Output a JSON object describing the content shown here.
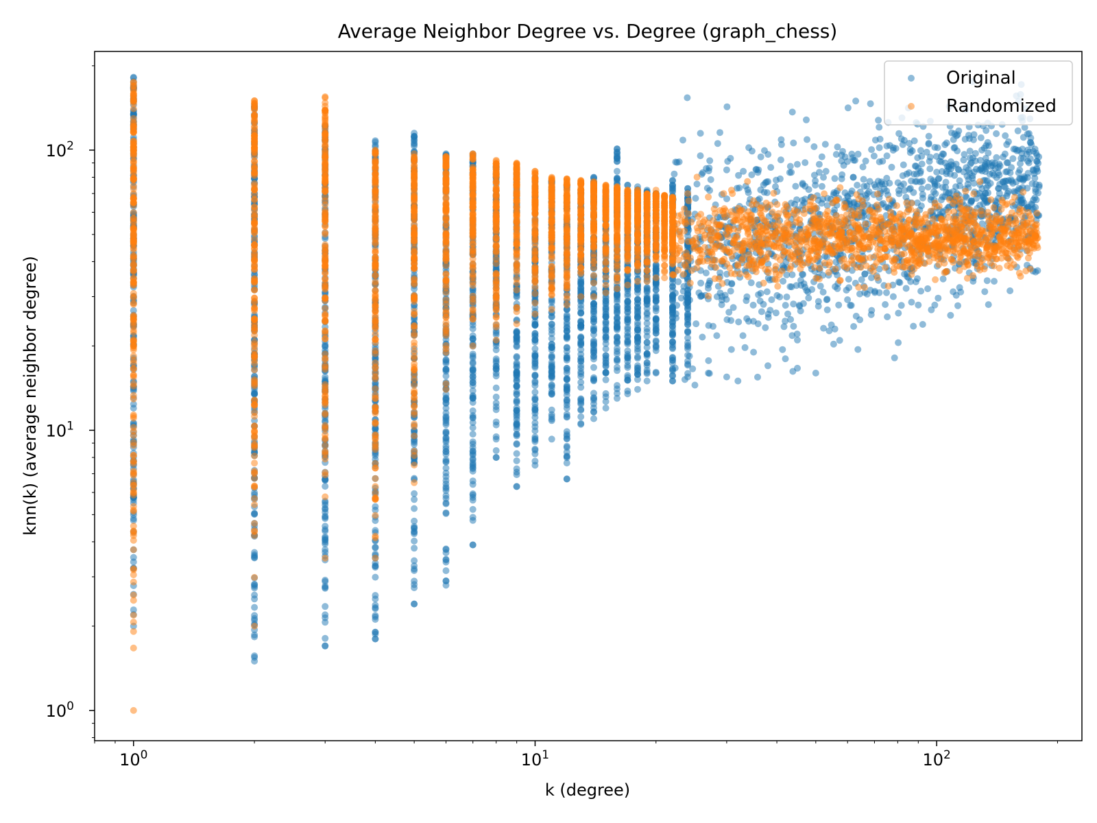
{
  "chart_data": {
    "type": "scatter",
    "title": "Average Neighbor Degree vs. Degree (graph_chess)",
    "xlabel": "k (degree)",
    "ylabel": "knn(k) (average neighbor degree)",
    "xscale": "log",
    "yscale": "log",
    "xlim": [
      0.8,
      230
    ],
    "ylim": [
      0.78,
      225
    ],
    "grid": false,
    "legend_position": "top-right",
    "x_ticks": [
      {
        "value": 1,
        "base": "10",
        "exp": "0"
      },
      {
        "value": 10,
        "base": "10",
        "exp": "1"
      },
      {
        "value": 100,
        "base": "10",
        "exp": "2"
      }
    ],
    "y_ticks": [
      {
        "value": 1,
        "base": "10",
        "exp": "0"
      },
      {
        "value": 10,
        "base": "10",
        "exp": "1"
      },
      {
        "value": 100,
        "base": "10",
        "exp": "2"
      }
    ],
    "series": [
      {
        "name": "Original",
        "color": "#1f77b4",
        "columns": [
          {
            "k": 1,
            "min": 2.0,
            "max": 182
          },
          {
            "k": 2,
            "min": 1.5,
            "max": 145
          },
          {
            "k": 3,
            "min": 1.7,
            "max": 122
          },
          {
            "k": 4,
            "min": 1.8,
            "max": 108
          },
          {
            "k": 5,
            "min": 2.4,
            "max": 115
          },
          {
            "k": 6,
            "min": 2.9,
            "max": 97
          },
          {
            "k": 7,
            "min": 3.9,
            "max": 97
          },
          {
            "k": 8,
            "min": 8.0,
            "max": 88
          },
          {
            "k": 9,
            "min": 6.3,
            "max": 85
          },
          {
            "k": 10,
            "min": 7.5,
            "max": 80
          },
          {
            "k": 11,
            "min": 9.3,
            "max": 78
          },
          {
            "k": 12,
            "min": 6.7,
            "max": 75
          },
          {
            "k": 13,
            "min": 10.5,
            "max": 72
          },
          {
            "k": 14,
            "min": 11.0,
            "max": 80
          },
          {
            "k": 15,
            "min": 12.0,
            "max": 72
          },
          {
            "k": 16,
            "min": 13.0,
            "max": 101
          },
          {
            "k": 17,
            "min": 13.5,
            "max": 75
          },
          {
            "k": 18,
            "min": 14.0,
            "max": 74
          },
          {
            "k": 19,
            "min": 15.0,
            "max": 72
          },
          {
            "k": 20,
            "min": 16.0,
            "max": 70
          },
          {
            "k": 22,
            "min": 15.0,
            "max": 78
          },
          {
            "k": 24,
            "min": 15.5,
            "max": 73
          }
        ],
        "cloud": {
          "k_min": 22,
          "k_max": 180,
          "knn_center_start": 40,
          "knn_center_end": 75,
          "spread": 0.19
        },
        "outliers": [
          [
            16,
            101
          ],
          [
            41,
            109
          ],
          [
            44,
            106
          ],
          [
            72,
            102
          ],
          [
            78,
            102
          ],
          [
            86,
            98
          ],
          [
            90,
            86
          ],
          [
            105,
            90
          ],
          [
            110,
            88
          ],
          [
            120,
            85
          ],
          [
            140,
            86
          ],
          [
            160,
            83
          ],
          [
            180,
            75
          ],
          [
            30,
            85
          ],
          [
            26,
            82
          ],
          [
            33,
            84
          ],
          [
            36,
            85
          ],
          [
            53,
            84
          ],
          [
            58,
            79
          ],
          [
            62,
            80
          ],
          [
            12,
            6.7
          ],
          [
            8,
            8.0
          ],
          [
            9,
            6.3
          ],
          [
            7,
            3.9
          ],
          [
            6,
            2.9
          ],
          [
            6,
            2.8
          ],
          [
            5,
            2.4
          ],
          [
            5,
            3.2
          ],
          [
            4,
            1.8
          ],
          [
            3,
            1.7
          ],
          [
            3,
            2.35
          ],
          [
            4,
            2.5
          ],
          [
            27,
            16
          ],
          [
            30,
            15.5
          ],
          [
            32,
            15
          ],
          [
            35,
            19
          ],
          [
            38,
            17
          ],
          [
            42,
            18
          ],
          [
            45,
            21
          ],
          [
            50,
            16
          ],
          [
            57,
            28
          ],
          [
            75,
            31
          ],
          [
            78,
            30
          ],
          [
            90,
            28
          ],
          [
            95,
            32
          ],
          [
            25,
            14.5
          ],
          [
            22,
            15
          ]
        ]
      },
      {
        "name": "Randomized",
        "color": "#ff7f0e",
        "columns": [
          {
            "k": 1,
            "min": 1.0,
            "max": 175
          },
          {
            "k": 2,
            "min": 2.0,
            "max": 150
          },
          {
            "k": 3,
            "min": 3.5,
            "max": 155
          },
          {
            "k": 4,
            "min": 3.5,
            "max": 100
          },
          {
            "k": 5,
            "min": 6.5,
            "max": 97
          },
          {
            "k": 6,
            "min": 14,
            "max": 95
          },
          {
            "k": 7,
            "min": 20,
            "max": 97
          },
          {
            "k": 8,
            "min": 21,
            "max": 92
          },
          {
            "k": 9,
            "min": 24,
            "max": 90
          },
          {
            "k": 10,
            "min": 26,
            "max": 84
          },
          {
            "k": 11,
            "min": 27,
            "max": 80
          },
          {
            "k": 12,
            "min": 28,
            "max": 79
          },
          {
            "k": 13,
            "min": 30,
            "max": 78
          },
          {
            "k": 14,
            "min": 30,
            "max": 77
          },
          {
            "k": 15,
            "min": 31,
            "max": 75
          },
          {
            "k": 16,
            "min": 32,
            "max": 74
          },
          {
            "k": 17,
            "min": 33,
            "max": 72
          },
          {
            "k": 18,
            "min": 34,
            "max": 72
          },
          {
            "k": 19,
            "min": 34,
            "max": 70
          },
          {
            "k": 20,
            "min": 35,
            "max": 70
          },
          {
            "k": 21,
            "min": 35,
            "max": 69
          },
          {
            "k": 22,
            "min": 36,
            "max": 68
          }
        ],
        "cloud": {
          "k_min": 22,
          "k_max": 180,
          "knn_center_start": 48,
          "knn_center_end": 49,
          "spread": 0.075
        },
        "outliers": [
          [
            10,
            84
          ],
          [
            20,
            72
          ],
          [
            24,
            70
          ],
          [
            27,
            68
          ],
          [
            31,
            70
          ],
          [
            35,
            66
          ],
          [
            42,
            64
          ],
          [
            50,
            62
          ],
          [
            160,
            52
          ],
          [
            175,
            53
          ],
          [
            172,
            47
          ],
          [
            140,
            44
          ],
          [
            115,
            42
          ],
          [
            105,
            44
          ],
          [
            90,
            45
          ]
        ]
      }
    ]
  }
}
